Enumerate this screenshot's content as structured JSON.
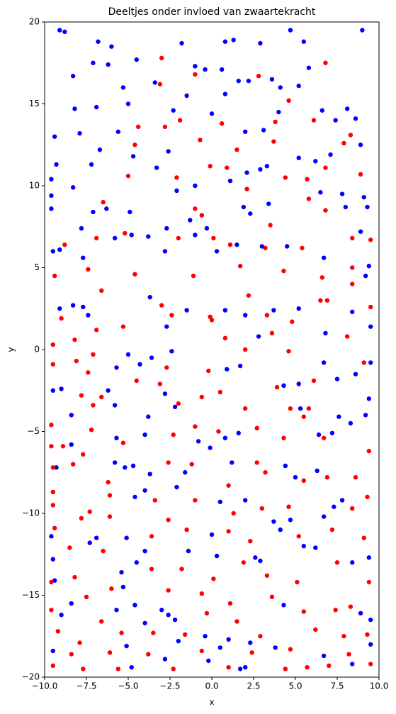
{
  "chart_data": {
    "type": "scatter",
    "title": "Deeltjes onder invloed van zwaartekracht",
    "x_label": "x",
    "y_label": "y",
    "xlim": [
      -10,
      10
    ],
    "ylim": [
      -20,
      20
    ],
    "xticks": [
      {
        "value": -10,
        "label": "−10.0"
      },
      {
        "value": -7.5,
        "label": "−7.5"
      },
      {
        "value": -5,
        "label": "−5.0"
      },
      {
        "value": -2.5,
        "label": "−2.5"
      },
      {
        "value": 0,
        "label": "0.0"
      },
      2.5,
      {
        "value": 5,
        "label": "5.0"
      },
      7.5,
      {
        "value": 10,
        "label": "10.0"
      }
    ],
    "yticks": [
      {
        "value": -20,
        "label": "−20"
      },
      {
        "value": -15,
        "label": "−15"
      },
      {
        "value": -10,
        "label": "−10"
      },
      {
        "value": -5,
        "label": "−5"
      },
      0,
      5,
      10,
      15,
      20
    ],
    "grid": false,
    "series": [
      {
        "color": "#0000ff",
        "x": [
          -9.1,
          -8.8,
          -6.8,
          -6.0,
          -1.8,
          0.8,
          1.3,
          2.9,
          4.7,
          5.5,
          9.0,
          -8.3,
          -7.1,
          -6.2,
          -4.5,
          -1.0,
          -0.4,
          0.6,
          2.2,
          3.6,
          4.1,
          5.2,
          5.8,
          -9.4,
          -8.2,
          -7.9,
          -6.9,
          -5.3,
          -5.0,
          -3.4,
          -2.3,
          -1.5,
          0.0,
          0.8,
          1.6,
          2.0,
          3.1,
          4.0,
          6.6,
          7.4,
          8.1,
          8.6,
          -9.3,
          -8.3,
          -7.2,
          -6.7,
          -5.6,
          -4.7,
          -3.3,
          -2.6,
          -2.1,
          -1.0,
          1.1,
          2.1,
          2.9,
          3.3,
          5.2,
          6.2,
          7.1,
          7.8,
          8.9,
          9.1,
          -9.6,
          -9.6,
          -9.6,
          -7.1,
          -7.8,
          -6.3,
          -4.9,
          -2.7,
          -1.3,
          -0.3,
          1.9,
          2.3,
          3.4,
          6.5,
          8.0,
          9.3,
          9.4,
          -9.5,
          -9.1,
          -7.7,
          -5.8,
          -4.8,
          -3.8,
          -2.8,
          -1.0,
          0.3,
          1.5,
          3.0,
          4.5,
          6.7,
          9.2,
          8.9,
          -9.1,
          -8.3,
          -7.7,
          -7.4,
          -3.7,
          -1.5,
          0.8,
          2.0,
          3.7,
          5.2,
          6.8,
          8.4,
          9.5,
          9.5,
          -5.7,
          -5.0,
          -4.3,
          -3.6,
          -2.4,
          -2.7,
          0.9,
          1.7,
          2.8,
          4.3,
          5.2,
          6.7,
          7.5,
          8.6,
          9.4,
          -9.5,
          -9.0,
          -8.4,
          -6.2,
          -5.8,
          -3.8,
          -2.8,
          -2.2,
          -4.0,
          -5.7,
          -8.4,
          -0.8,
          0.8,
          1.6,
          5.3,
          6.4,
          7.2,
          7.6,
          8.3,
          9.2,
          -9.3,
          -5.8,
          -5.2,
          -4.7,
          -3.7,
          -1.6,
          -0.1,
          1.2,
          4.4,
          5.0,
          6.3,
          -4.6,
          -4.0,
          -2.1,
          0.5,
          2.0,
          3.7,
          4.1,
          4.7,
          6.7,
          7.3,
          7.8,
          -9.6,
          -9.5,
          -7.3,
          -6.9,
          -5.1,
          -4.5,
          -4.0,
          -1.4,
          0.0,
          0.3,
          2.6,
          2.9,
          5.5,
          6.2,
          8.4,
          9.4,
          -9.4,
          -9.0,
          -8.4,
          -5.7,
          -5.3,
          -5.4,
          -4.6,
          -4.0,
          -3.0,
          -2.6,
          -2.2,
          -2.0,
          -0.4,
          0.5,
          1.0,
          1.7,
          2.3,
          3.8,
          4.3,
          6.7,
          8.4,
          8.9,
          9.5,
          9.5,
          -4.8,
          -5.1,
          -2.8,
          -9.5,
          -0.2,
          2.0
        ],
        "values": [
          19.5,
          19.4,
          18.8,
          18.5,
          18.7,
          18.8,
          18.9,
          18.7,
          19.5,
          18.8,
          19.5,
          16.7,
          17.5,
          17.4,
          17.7,
          17.3,
          17.1,
          17.1,
          16.4,
          16.5,
          16.0,
          16.1,
          17.2,
          13.0,
          14.7,
          13.2,
          14.8,
          16.0,
          15.0,
          16.3,
          14.6,
          15.5,
          14.4,
          15.6,
          16.4,
          13.3,
          13.4,
          14.5,
          14.6,
          14.0,
          14.7,
          14.1,
          11.3,
          9.9,
          11.3,
          12.2,
          13.3,
          11.8,
          11.1,
          12.1,
          9.7,
          10.0,
          10.3,
          10.8,
          11.0,
          11.2,
          11.7,
          11.5,
          11.9,
          9.5,
          12.5,
          9.3,
          10.4,
          9.4,
          8.6,
          8.4,
          7.4,
          8.6,
          8.4,
          7.4,
          7.9,
          7.4,
          8.7,
          8.3,
          8.9,
          9.6,
          8.7,
          8.7,
          5.1,
          6.0,
          6.1,
          5.6,
          6.8,
          7.0,
          6.9,
          6.0,
          7.0,
          6.0,
          6.4,
          6.3,
          6.3,
          5.6,
          4.5,
          7.2,
          2.5,
          2.7,
          2.6,
          2.1,
          3.2,
          2.4,
          2.4,
          2.1,
          2.4,
          2.5,
          1.0,
          2.3,
          1.4,
          -0.8,
          -1.1,
          -0.3,
          -0.9,
          -0.5,
          -0.1,
          1.4,
          -1.2,
          -1.0,
          0.8,
          -2.2,
          -2.1,
          -0.8,
          -1.8,
          -1.5,
          -3.0,
          -2.5,
          -2.4,
          -4.0,
          -2.5,
          -3.4,
          -4.1,
          -2.7,
          -3.5,
          -5.2,
          -5.4,
          -5.8,
          -5.6,
          -5.4,
          -5.1,
          -3.6,
          -5.2,
          -5.1,
          -4.1,
          -4.5,
          -4.0,
          -7.2,
          -6.9,
          -7.2,
          -7.1,
          -7.6,
          -7.5,
          -6.0,
          -6.9,
          -7.1,
          -7.8,
          -7.4,
          -9.0,
          -8.6,
          -8.4,
          -9.3,
          -9.2,
          -10.5,
          -11.0,
          -10.4,
          -10.2,
          -9.6,
          -9.2,
          -11.4,
          -12.8,
          -11.8,
          -11.5,
          -11.5,
          -13.0,
          -12.3,
          -12.3,
          -11.3,
          -12.6,
          -12.7,
          -12.9,
          -12.0,
          -12.1,
          -13.0,
          -12.7,
          -14.1,
          -16.2,
          -15.5,
          -15.9,
          -14.5,
          -13.6,
          -15.6,
          -16.7,
          -15.9,
          -16.2,
          -16.5,
          -17.8,
          -17.5,
          -18.2,
          -17.7,
          -19.5,
          -17.9,
          -18.2,
          -15.6,
          -18.7,
          -19.2,
          -16.1,
          -16.5,
          -18.0,
          -19.4,
          -18.1,
          -18.9,
          -18.4,
          -19.0,
          -19.4
        ]
      },
      {
        "color": "#ff0000",
        "x": [
          -3.0,
          -1.0,
          2.8,
          6.8,
          4.6,
          -3.1,
          -4.4,
          -2.8,
          -1.9,
          -0.7,
          0.6,
          1.5,
          3.7,
          3.8,
          6.1,
          7.9,
          8.3,
          -5.0,
          -4.6,
          -2.1,
          -0.1,
          0.9,
          2.1,
          4.4,
          5.7,
          6.8,
          8.9,
          -6.5,
          -1.0,
          -0.6,
          5.8,
          6.8,
          -6.9,
          -5.2,
          -2.0,
          0.1,
          1.1,
          3.2,
          3.5,
          5.4,
          8.4,
          9.5,
          -8.8,
          -9.4,
          -7.4,
          -6.6,
          -4.6,
          -3.0,
          -1.1,
          -0.1,
          1.7,
          2.2,
          4.3,
          6.6,
          8.4,
          8.4,
          -9.0,
          -8.2,
          -6.9,
          -5.3,
          -2.4,
          0.0,
          0.8,
          3.3,
          4.8,
          6.5,
          6.9,
          9.5,
          -9.5,
          -9.5,
          -8.1,
          -7.1,
          -7.4,
          -4.5,
          -2.7,
          -0.2,
          2.0,
          3.6,
          4.6,
          6.1,
          8.1,
          9.1,
          -7.8,
          -7.1,
          -6.6,
          -3.1,
          -2.0,
          -0.6,
          0.5,
          2.0,
          3.9,
          4.7,
          5.8,
          -9.6,
          -8.9,
          -7.7,
          -7.2,
          -5.3,
          -2.3,
          -1.0,
          0.4,
          2.7,
          4.3,
          5.5,
          6.7,
          9.4,
          -9.6,
          -9.5,
          -8.3,
          -6.2,
          -2.6,
          -1.2,
          1.0,
          2.7,
          3.2,
          5.5,
          6.9,
          8.6,
          -9.5,
          -9.5,
          -7.3,
          -6.1,
          -3.4,
          -2.6,
          -1.0,
          1.3,
          3.0,
          4.6,
          8.4,
          9.3,
          -9.4,
          -7.8,
          -6.1,
          -3.6,
          -1.5,
          1.0,
          2.3,
          5.2,
          7.2,
          9.1,
          -8.5,
          -6.5,
          -3.6,
          -1.8,
          0.1,
          1.9,
          3.3,
          5.1,
          7.5,
          9.4,
          -9.6,
          -8.2,
          -7.5,
          -6.0,
          -2.6,
          -0.6,
          1.1,
          3.6,
          5.5,
          7.4,
          8.3,
          -9.6,
          -9.2,
          -7.9,
          -6.6,
          -5.4,
          -3.5,
          -1.6,
          -0.3,
          1.5,
          2.9,
          4.7,
          6.2,
          7.9,
          9.3,
          -9.5,
          -8.4,
          -7.7,
          -6.1,
          -5.6,
          -3.8,
          -2.3,
          -0.6,
          1.0,
          2.4,
          4.4,
          5.7,
          7.0,
          8.2,
          9.5
        ],
        "values": [
          17.8,
          16.8,
          16.7,
          17.5,
          15.2,
          16.2,
          13.6,
          13.6,
          14.0,
          12.8,
          13.8,
          12.2,
          12.7,
          13.9,
          14.0,
          12.6,
          13.1,
          10.6,
          12.5,
          10.5,
          11.2,
          11.1,
          9.8,
          10.5,
          10.4,
          11.1,
          10.7,
          9.0,
          8.6,
          8.2,
          9.2,
          8.5,
          6.8,
          7.1,
          6.8,
          6.8,
          6.4,
          6.2,
          7.6,
          6.2,
          6.8,
          6.7,
          6.4,
          4.5,
          4.9,
          3.6,
          4.6,
          2.7,
          4.5,
          2.0,
          5.1,
          3.3,
          4.8,
          4.4,
          5.0,
          4.0,
          1.9,
          0.6,
          1.2,
          1.4,
          2.1,
          1.8,
          0.7,
          2.1,
          1.7,
          3.0,
          3.0,
          2.6,
          0.3,
          -0.9,
          -0.7,
          -0.3,
          -1.4,
          -1.9,
          -1.1,
          -1.3,
          0.0,
          1.0,
          -0.1,
          -1.9,
          0.8,
          -0.8,
          -2.8,
          -3.4,
          -2.9,
          -2.1,
          -3.3,
          -2.9,
          -2.6,
          -3.6,
          -2.3,
          -3.6,
          -3.6,
          -4.6,
          -5.9,
          -6.4,
          -4.9,
          -5.7,
          -5.2,
          -4.7,
          -5.0,
          -4.8,
          -5.4,
          -4.1,
          -5.4,
          -6.2,
          -5.9,
          -7.2,
          -7.0,
          -8.1,
          -6.9,
          -7.0,
          -8.3,
          -6.9,
          -7.5,
          -8.0,
          -7.8,
          -7.8,
          -8.7,
          -9.5,
          -9.9,
          -8.9,
          -9.2,
          -10.4,
          -9.2,
          -10.0,
          -9.7,
          -9.6,
          -9.7,
          -9.0,
          -10.9,
          -10.3,
          -10.2,
          -11.4,
          -11.0,
          -11.1,
          -11.7,
          -11.4,
          -11.0,
          -11.5,
          -12.1,
          -12.3,
          -13.4,
          -13.4,
          -14.0,
          -13.0,
          -13.8,
          -14.2,
          -13.0,
          -14.2,
          -14.2,
          -13.9,
          -15.1,
          -14.6,
          -14.7,
          -14.9,
          -15.5,
          -15.1,
          -16.0,
          -15.9,
          -15.7,
          -15.9,
          -17.2,
          -17.9,
          -16.6,
          -17.3,
          -17.3,
          -17.4,
          -16.1,
          -16.6,
          -17.5,
          -18.3,
          -17.1,
          -17.5,
          -17.4,
          -19.3,
          -18.6,
          -19.5,
          -18.5,
          -19.5,
          -18.6,
          -19.5,
          -18.4,
          -19.4,
          -18.5,
          -19.5,
          -19.4,
          -19.3,
          -18.6,
          -19.2
        ]
      }
    ]
  }
}
